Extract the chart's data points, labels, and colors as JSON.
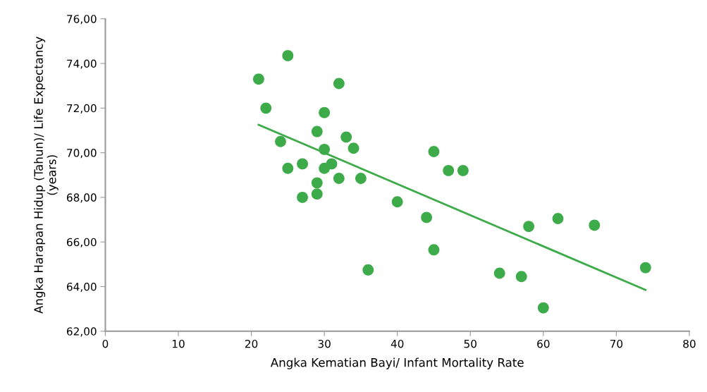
{
  "chart_data": {
    "type": "scatter",
    "xlabel": "Angka Kematian Bayi/ Infant Mortality Rate",
    "ylabel": "Angka Harapan Hidup (Tahun)/ Life Expectancy\n(years)",
    "grid": false,
    "legend": false,
    "xlim": [
      0,
      80
    ],
    "xticks": [
      0,
      10,
      20,
      30,
      40,
      50,
      60,
      70,
      80
    ],
    "ylim": [
      62,
      76
    ],
    "yticks": [
      {
        "value": 62,
        "label": "62,00"
      },
      {
        "value": 64,
        "label": "64,00"
      },
      {
        "value": 66,
        "label": "66,00"
      },
      {
        "value": 68,
        "label": "68,00"
      },
      {
        "value": 70,
        "label": "70,00"
      },
      {
        "value": 72,
        "label": "72,00"
      },
      {
        "value": 74,
        "label": "74,00"
      },
      {
        "value": 76,
        "label": "76,00"
      }
    ],
    "series": [
      {
        "marker": "circle",
        "color": "#3dab49",
        "x": [
          21,
          22,
          25,
          32,
          30,
          24,
          29,
          33,
          30,
          34,
          45,
          25,
          27,
          30,
          31,
          32,
          35,
          47,
          49,
          29,
          29,
          27,
          40,
          44,
          58,
          62,
          67,
          45,
          36,
          54,
          57,
          74,
          60
        ],
        "values": [
          73.3,
          72.0,
          74.35,
          73.1,
          71.8,
          70.5,
          70.95,
          70.7,
          70.15,
          70.2,
          70.05,
          69.3,
          69.5,
          69.3,
          69.5,
          68.85,
          68.85,
          69.2,
          69.2,
          68.65,
          68.15,
          68.0,
          67.8,
          67.1,
          66.7,
          67.05,
          66.75,
          65.65,
          64.75,
          64.6,
          64.45,
          64.85,
          63.05
        ]
      },
      {
        "type": "line",
        "marker": "none",
        "color": "#3dab49",
        "x": [
          21,
          74
        ],
        "values": [
          71.25,
          63.85
        ]
      }
    ]
  }
}
